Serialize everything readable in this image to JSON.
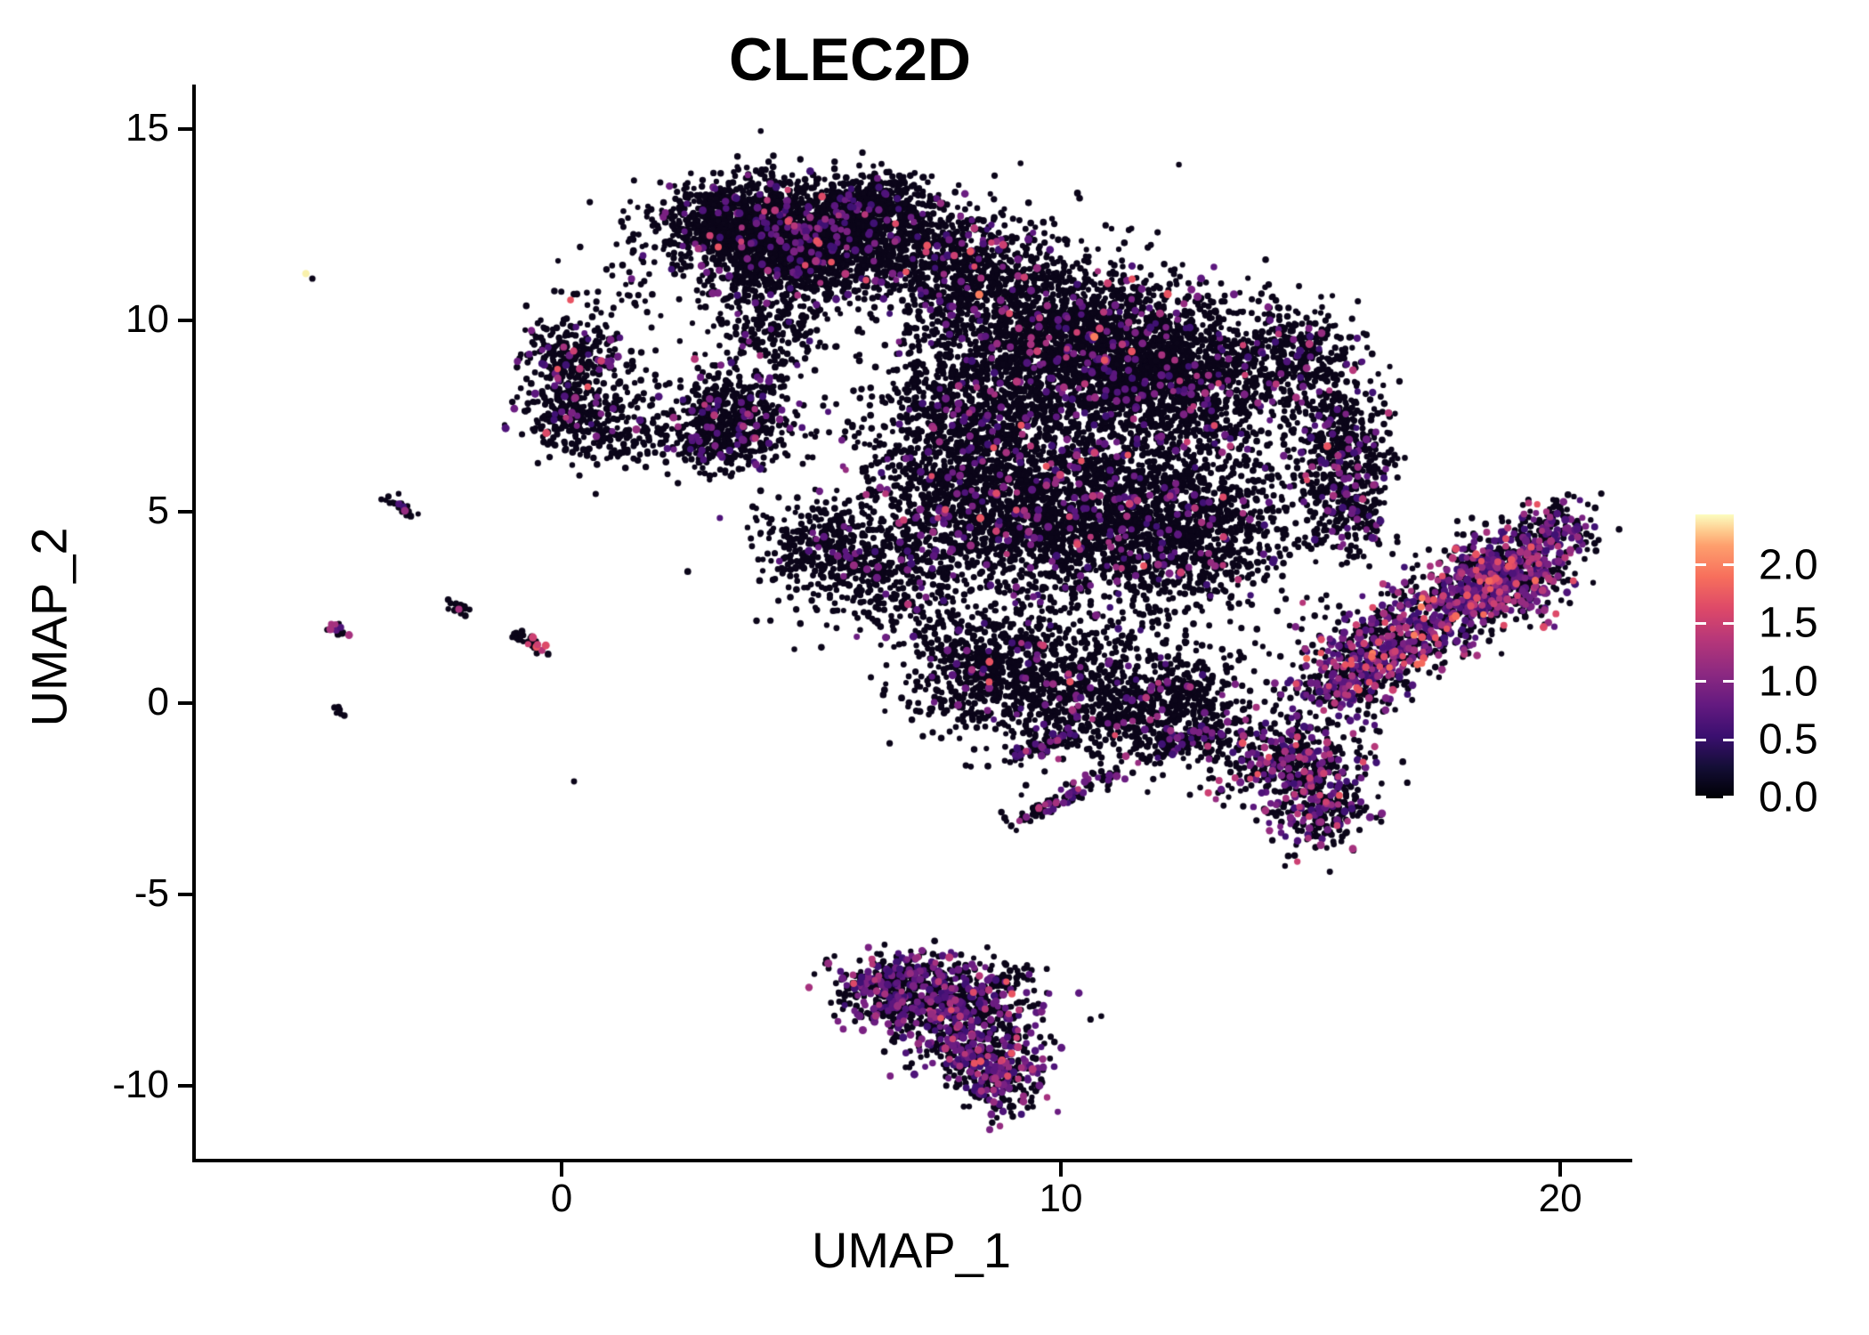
{
  "chart_data": {
    "type": "scatter",
    "title": "CLEC2D",
    "xlabel": "UMAP_1",
    "ylabel": "UMAP_2",
    "x_ticks": [
      0,
      10,
      20
    ],
    "y_ticks": [
      15,
      10,
      5,
      0,
      -5,
      -10
    ],
    "x_range": [
      -7.36,
      21.37
    ],
    "y_range": [
      -11.91,
      16.16
    ],
    "grid": false,
    "legend": {
      "position": "right",
      "tick_labels": [
        "2.0",
        "1.5",
        "1.0",
        "0.5",
        "0.0"
      ],
      "tick_values": [
        2.0,
        1.5,
        1.0,
        0.5,
        0.0
      ],
      "vmin": 0.0,
      "vmax": 2.2,
      "colormap": "magma"
    },
    "palette": {
      "black": "#0B0519",
      "purple": [
        "#3F1173",
        "#4E1379",
        "#5C177E",
        "#6B1D81",
        "#7A2182"
      ],
      "magenta": [
        "#952C80",
        "#A5317E",
        "#B63779"
      ],
      "pink": [
        "#CC4072",
        "#DD4A68",
        "#E85362"
      ],
      "orange": [
        "#F4695C",
        "#FA7D5E"
      ],
      "yellow": [
        "#F9F1AC"
      ]
    },
    "point_cloud": {
      "description": "UMAP embedding of ~20000 single cells colored by CLEC2D expression (0 - 2.2). Clusters listed as gaussian blobs (g: cx,cy,sx,sy,n) or line segments (l: x1,y1,x2,y2,w,n) in UMAP coordinates; color fractions are non-zero-expression rates.",
      "clusters": [
        {
          "t": "g",
          "p": [
            3.6,
            12.55,
            0.85,
            0.55
          ],
          "n": 850,
          "c": {
            "purple": 0.06,
            "magenta": 0.008,
            "pink": 0.003
          }
        },
        {
          "t": "g",
          "p": [
            5.5,
            12.35,
            1.05,
            0.65
          ],
          "n": 1000,
          "c": {
            "purple": 0.06,
            "magenta": 0.008,
            "pink": 0.003
          }
        },
        {
          "t": "g",
          "p": [
            4.6,
            11.5,
            0.8,
            0.5
          ],
          "n": 500,
          "c": {
            "purple": 0.06,
            "magenta": 0.008
          }
        },
        {
          "t": "g",
          "p": [
            7.1,
            11.7,
            0.75,
            0.85
          ],
          "n": 260,
          "c": {
            "purple": 0.05,
            "pink": 0.008
          }
        },
        {
          "t": "g",
          "p": [
            6.1,
            13.1,
            0.5,
            0.35
          ],
          "n": 220,
          "c": {
            "purple": 0.05
          }
        },
        {
          "t": "g",
          "p": [
            4.15,
            9.9,
            0.55,
            0.7
          ],
          "n": 240,
          "c": {
            "purple": 0.07
          }
        },
        {
          "t": "g",
          "p": [
            4.8,
            11.9,
            1.6,
            1.1
          ],
          "n": 260,
          "c": {
            "purple": 0.05
          }
        },
        {
          "t": "g",
          "p": [
            1.1,
            10.9,
            0.8,
            0.7
          ],
          "n": 35,
          "c": {
            "purple": 0.05
          }
        },
        {
          "t": "g",
          "p": [
            0.25,
            9.15,
            0.5,
            0.45
          ],
          "n": 210,
          "c": {
            "purple": 0.08,
            "magenta": 0.012,
            "pink": 0.012
          }
        },
        {
          "t": "g",
          "p": [
            0.1,
            7.7,
            0.45,
            0.6
          ],
          "n": 220,
          "c": {
            "purple": 0.08,
            "magenta": 0.015,
            "pink": 0.012
          }
        },
        {
          "t": "g",
          "p": [
            1.15,
            7.05,
            0.55,
            0.4
          ],
          "n": 130,
          "c": {
            "purple": 0.08,
            "magenta": 0.01
          }
        },
        {
          "t": "g",
          "p": [
            0.8,
            8.4,
            0.5,
            0.5
          ],
          "n": 70,
          "c": {
            "purple": 0.06
          }
        },
        {
          "t": "g",
          "p": [
            3.5,
            7.5,
            0.62,
            0.6
          ],
          "n": 520,
          "c": {
            "purple": 0.09,
            "magenta": 0.012
          }
        },
        {
          "t": "g",
          "p": [
            2.75,
            6.7,
            0.4,
            0.35
          ],
          "n": 130,
          "c": {
            "purple": 0.09
          }
        },
        {
          "t": "g",
          "p": [
            8.4,
            11.0,
            0.85,
            0.85
          ],
          "n": 650,
          "c": {
            "purple": 0.05,
            "magenta": 0.012,
            "pink": 0.005
          }
        },
        {
          "t": "g",
          "p": [
            10.4,
            9.4,
            1.15,
            1.0
          ],
          "n": 1550,
          "c": {
            "purple": 0.055,
            "magenta": 0.012,
            "pink": 0.005,
            "orange": 0.001
          }
        },
        {
          "t": "g",
          "p": [
            12.3,
            8.3,
            1.0,
            1.05
          ],
          "n": 1250,
          "c": {
            "purple": 0.055,
            "magenta": 0.012,
            "pink": 0.005
          }
        },
        {
          "t": "g",
          "p": [
            8.3,
            8.0,
            0.9,
            1.0
          ],
          "n": 680,
          "c": {
            "purple": 0.055,
            "magenta": 0.01
          }
        },
        {
          "t": "g",
          "p": [
            14.6,
            9.1,
            0.6,
            0.65
          ],
          "n": 330,
          "c": {
            "purple": 0.1,
            "magenta": 0.02
          }
        },
        {
          "t": "g",
          "p": [
            15.55,
            6.9,
            0.5,
            1.0
          ],
          "n": 400,
          "c": {
            "purple": 0.1,
            "magenta": 0.02,
            "pink": 0.005
          }
        },
        {
          "t": "g",
          "p": [
            15.85,
            5.2,
            0.42,
            0.7
          ],
          "n": 200,
          "c": {
            "purple": 0.12,
            "magenta": 0.03
          }
        },
        {
          "t": "g",
          "p": [
            8.0,
            5.7,
            1.0,
            1.15
          ],
          "n": 850,
          "c": {
            "purple": 0.055,
            "magenta": 0.012,
            "pink": 0.005
          }
        },
        {
          "t": "g",
          "p": [
            10.3,
            5.0,
            1.25,
            1.15
          ],
          "n": 1400,
          "c": {
            "purple": 0.055,
            "magenta": 0.012,
            "pink": 0.005
          }
        },
        {
          "t": "g",
          "p": [
            12.6,
            4.6,
            1.0,
            1.0
          ],
          "n": 850,
          "c": {
            "purple": 0.06,
            "magenta": 0.015,
            "pink": 0.005
          }
        },
        {
          "t": "g",
          "p": [
            5.1,
            4.2,
            0.6,
            0.6
          ],
          "n": 260,
          "c": {
            "purple": 0.07
          }
        },
        {
          "t": "g",
          "p": [
            6.4,
            3.4,
            0.85,
            0.8
          ],
          "n": 380,
          "c": {
            "purple": 0.07,
            "magenta": 0.01
          }
        },
        {
          "t": "g",
          "p": [
            8.6,
            0.7,
            0.9,
            0.85
          ],
          "n": 520,
          "c": {
            "purple": 0.06,
            "magenta": 0.015,
            "pink": 0.006
          }
        },
        {
          "t": "g",
          "p": [
            10.6,
            0.1,
            1.0,
            0.8
          ],
          "n": 560,
          "c": {
            "purple": 0.06,
            "magenta": 0.015,
            "pink": 0.006
          }
        },
        {
          "t": "g",
          "p": [
            12.4,
            -0.2,
            0.8,
            0.7
          ],
          "n": 430,
          "c": {
            "purple": 0.07,
            "magenta": 0.015
          }
        },
        {
          "t": "g",
          "p": [
            14.5,
            -1.5,
            0.8,
            0.6
          ],
          "n": 400,
          "c": {
            "purple": 0.2,
            "magenta": 0.05,
            "pink": 0.02
          }
        },
        {
          "t": "g",
          "p": [
            15.2,
            -2.7,
            0.5,
            0.55
          ],
          "n": 250,
          "c": {
            "purple": 0.24,
            "magenta": 0.06,
            "pink": 0.02
          }
        },
        {
          "t": "g",
          "p": [
            10.8,
            5.5,
            2.4,
            2.8
          ],
          "n": 550,
          "c": {
            "purple": 0.05
          }
        },
        {
          "t": "g",
          "p": [
            9.5,
            1.8,
            1.6,
            1.2
          ],
          "n": 250,
          "c": {
            "purple": 0.06
          }
        },
        {
          "t": "l",
          "p": [
            9.0,
            -1.4,
            10.4,
            -0.7,
            0.12
          ],
          "n": 85,
          "c": {
            "purple": 0.25,
            "magenta": 0.06
          }
        },
        {
          "t": "l",
          "p": [
            8.9,
            -3.2,
            11.1,
            -1.9,
            0.12
          ],
          "n": 100,
          "c": {
            "purple": 0.25,
            "magenta": 0.06
          }
        },
        {
          "t": "l",
          "p": [
            12.0,
            -1.2,
            13.2,
            -0.6,
            0.1
          ],
          "n": 60,
          "c": {
            "purple": 0.2
          }
        },
        {
          "t": "l",
          "p": [
            15.5,
            0.7,
            19.6,
            3.9,
            0.55
          ],
          "n": 1250,
          "c": {
            "purple": 0.28,
            "magenta": 0.1,
            "pink": 0.04,
            "orange": 0.008
          }
        },
        {
          "t": "g",
          "p": [
            18.9,
            3.3,
            0.55,
            0.5
          ],
          "n": 230,
          "c": {
            "purple": 0.28,
            "magenta": 0.1,
            "pink": 0.04
          }
        },
        {
          "t": "g",
          "p": [
            19.9,
            4.6,
            0.45,
            0.4
          ],
          "n": 130,
          "c": {
            "purple": 0.25,
            "magenta": 0.08
          }
        },
        {
          "t": "g",
          "p": [
            15.7,
            0.4,
            0.5,
            0.4
          ],
          "n": 120,
          "c": {
            "purple": 0.3,
            "magenta": 0.1
          }
        },
        {
          "t": "g",
          "p": [
            6.6,
            -7.6,
            0.6,
            0.5
          ],
          "n": 320,
          "c": {
            "purple": 0.28,
            "magenta": 0.05,
            "pink": 0.02
          }
        },
        {
          "t": "g",
          "p": [
            7.9,
            -7.9,
            0.75,
            0.5
          ],
          "n": 370,
          "c": {
            "purple": 0.28,
            "magenta": 0.05,
            "pink": 0.02
          }
        },
        {
          "t": "g",
          "p": [
            8.3,
            -9.0,
            0.6,
            0.55
          ],
          "n": 330,
          "c": {
            "purple": 0.3,
            "magenta": 0.06,
            "pink": 0.02
          }
        },
        {
          "t": "g",
          "p": [
            8.85,
            -9.85,
            0.4,
            0.45
          ],
          "n": 170,
          "c": {
            "purple": 0.35,
            "magenta": 0.08
          }
        },
        {
          "t": "g",
          "p": [
            7.3,
            -7.0,
            0.95,
            0.3
          ],
          "n": 120,
          "c": {
            "purple": 0.25,
            "magenta": 0.05
          }
        },
        {
          "t": "l",
          "p": [
            8.6,
            -7.3,
            9.4,
            -7.0,
            0.1
          ],
          "n": 30,
          "c": {
            "purple": 0.1
          }
        },
        {
          "t": "l",
          "p": [
            -3.45,
            5.35,
            -3.0,
            4.9,
            0.07
          ],
          "n": 22,
          "c": {
            "purple": 0.1,
            "magenta": 0.05
          }
        },
        {
          "t": "l",
          "p": [
            -2.25,
            2.65,
            -1.85,
            2.35,
            0.07
          ],
          "n": 18,
          "c": {
            "purple": 0.06,
            "magenta": 0.12
          }
        },
        {
          "t": "l",
          "p": [
            -4.6,
            2.05,
            -4.3,
            1.72,
            0.07
          ],
          "n": 18,
          "c": {
            "purple": 0.06,
            "magenta": 0.12
          }
        },
        {
          "t": "l",
          "p": [
            -0.9,
            1.78,
            -0.25,
            1.33,
            0.08
          ],
          "n": 28,
          "c": {
            "purple": 0.1,
            "magenta": 0.06,
            "pink": 0.05
          }
        },
        {
          "t": "g",
          "p": [
            -4.45,
            -0.12,
            0.09,
            0.09
          ],
          "n": 8,
          "c": {}
        }
      ],
      "extra_points": [
        {
          "x": -5.12,
          "y": 11.22,
          "class": "yellow"
        },
        {
          "x": -4.99,
          "y": 11.09,
          "class": "black"
        },
        {
          "x": 0.25,
          "y": -2.05,
          "class": "black"
        }
      ]
    }
  }
}
